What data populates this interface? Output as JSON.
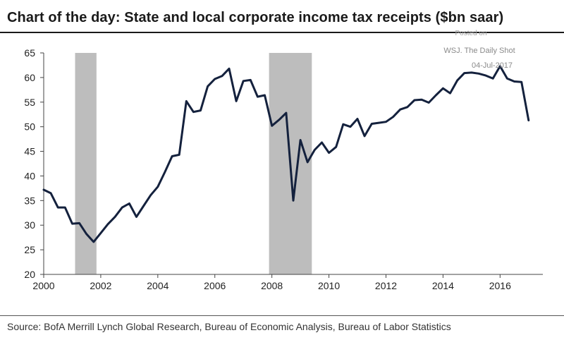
{
  "title": "Chart of the day: State and local corporate income tax receipts ($bn saar)",
  "source": "Source: BofA Merrill Lynch Global Research, Bureau of Economic Analysis, Bureau of Labor Statistics",
  "watermark": {
    "line1": "Posted on",
    "line2": "WSJ. The Daily Shot",
    "line3": "04-Jul-2017"
  },
  "colors": {
    "line": "#14213d",
    "recession": "#bdbdbd",
    "axis": "#444444"
  },
  "chart_data": {
    "type": "line",
    "title": "Chart of the day: State and local corporate income tax receipts ($bn saar)",
    "xlabel": "",
    "ylabel": "",
    "xlim": [
      2000,
      2017.5
    ],
    "ylim": [
      20,
      65
    ],
    "y_ticks": [
      20,
      25,
      30,
      35,
      40,
      45,
      50,
      55,
      60,
      65
    ],
    "x_ticks": [
      2000,
      2002,
      2004,
      2006,
      2008,
      2010,
      2012,
      2014,
      2016
    ],
    "recessions": [
      [
        2001.1,
        2001.85
      ],
      [
        2007.9,
        2009.4
      ]
    ],
    "series": [
      {
        "name": "State and local corporate income tax receipts",
        "x": [
          2000.0,
          2000.25,
          2000.5,
          2000.75,
          2001.0,
          2001.25,
          2001.5,
          2001.75,
          2002.0,
          2002.25,
          2002.5,
          2002.75,
          2003.0,
          2003.25,
          2003.5,
          2003.75,
          2004.0,
          2004.25,
          2004.5,
          2004.75,
          2005.0,
          2005.25,
          2005.5,
          2005.75,
          2006.0,
          2006.25,
          2006.5,
          2006.75,
          2007.0,
          2007.25,
          2007.5,
          2007.75,
          2008.0,
          2008.25,
          2008.5,
          2008.75,
          2009.0,
          2009.25,
          2009.5,
          2009.75,
          2010.0,
          2010.25,
          2010.5,
          2010.75,
          2011.0,
          2011.25,
          2011.5,
          2011.75,
          2012.0,
          2012.25,
          2012.5,
          2012.75,
          2013.0,
          2013.25,
          2013.5,
          2013.75,
          2014.0,
          2014.25,
          2014.5,
          2014.75,
          2015.0,
          2015.25,
          2015.5,
          2015.75,
          2016.0,
          2016.25,
          2016.5,
          2016.75,
          2017.0
        ],
        "values": [
          37.2,
          36.5,
          33.6,
          33.6,
          30.3,
          30.4,
          28.2,
          26.6,
          28.4,
          30.2,
          31.7,
          33.6,
          34.4,
          31.7,
          33.9,
          36.1,
          37.8,
          40.8,
          44.0,
          44.3,
          55.2,
          53.0,
          53.3,
          58.2,
          59.7,
          60.3,
          61.8,
          55.2,
          59.3,
          59.5,
          56.1,
          56.4,
          50.2,
          51.4,
          52.8,
          35.0,
          47.3,
          42.8,
          45.3,
          46.8,
          44.7,
          45.9,
          50.5,
          50.0,
          51.6,
          48.1,
          50.6,
          50.8,
          51.0,
          52.0,
          53.5,
          54.0,
          55.4,
          55.5,
          54.9,
          56.4,
          57.8,
          56.8,
          59.4,
          60.9,
          61.0,
          60.8,
          60.4,
          59.8,
          62.3,
          59.8,
          59.2,
          59.1,
          51.3
        ]
      }
    ]
  }
}
